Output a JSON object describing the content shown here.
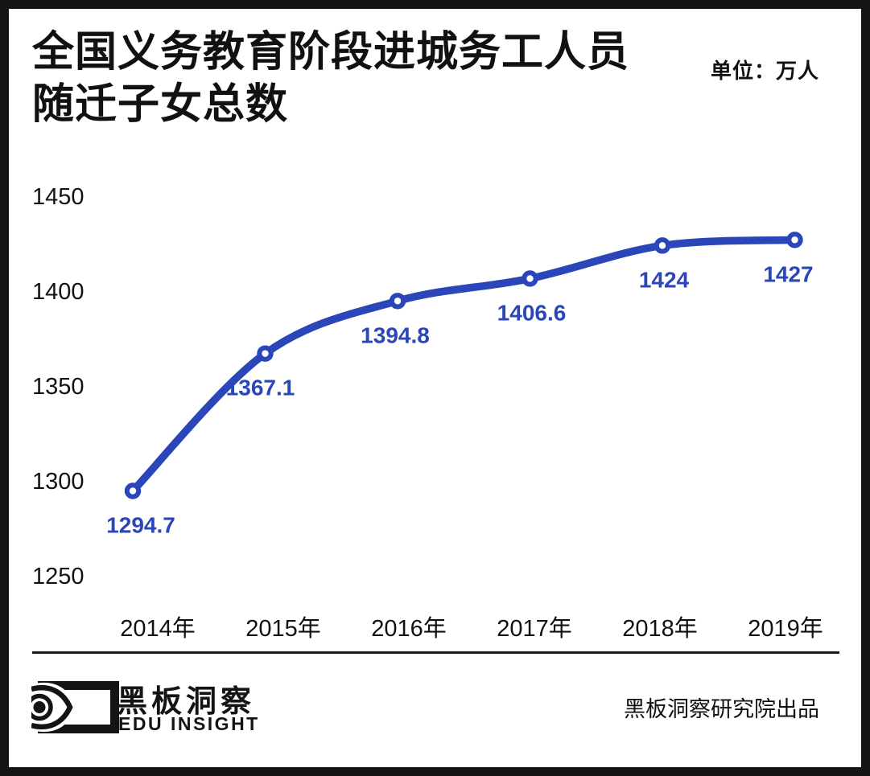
{
  "header": {
    "title_line1": "全国义务教育阶段进城务工人员",
    "title_line2": "随迁子女总数",
    "unit_label": "单位：万人"
  },
  "chart_data": {
    "type": "line",
    "title": "全国义务教育阶段进城务工人员随迁子女总数",
    "unit": "万人",
    "categories": [
      "2014年",
      "2015年",
      "2016年",
      "2017年",
      "2018年",
      "2019年"
    ],
    "values": [
      1294.7,
      1367.1,
      1394.8,
      1406.6,
      1424,
      1427
    ],
    "point_labels": [
      "1294.7",
      "1367.1",
      "1394.8",
      "1406.6",
      "1424",
      "1427"
    ],
    "y_ticks": [
      1450,
      1400,
      1350,
      1300,
      1250
    ],
    "ylim": [
      1250,
      1450
    ],
    "grid": false,
    "legend": "none",
    "line_color": "#2a46b8",
    "marker": "open-circle",
    "marker_fill": "#ffffff",
    "text_color": "#111111"
  },
  "footer": {
    "brand_cn": "黑板洞察",
    "brand_en": "EDU INSIGHT",
    "credit": "黑板洞察研究院出品"
  }
}
